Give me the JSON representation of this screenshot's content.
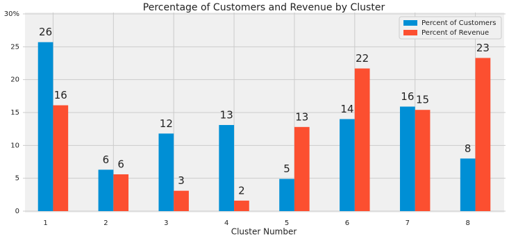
{
  "chart_data": {
    "type": "bar",
    "title": "Percentage of Customers and Revenue by Cluster",
    "x_label": "Cluster Number",
    "categories": [
      "1",
      "2",
      "3",
      "4",
      "5",
      "6",
      "7",
      "8"
    ],
    "series": [
      {
        "name": "Percent of Customers",
        "color": "#008fd5",
        "values": [
          25.7,
          6.3,
          11.8,
          13.1,
          4.9,
          14.0,
          15.9,
          8.0
        ],
        "value_labels": [
          "26",
          "6",
          "12",
          "13",
          "5",
          "14",
          "16",
          "8"
        ]
      },
      {
        "name": "Percent of Revenue",
        "color": "#fc4f30",
        "values": [
          16.1,
          5.6,
          3.1,
          1.6,
          12.8,
          21.7,
          15.4,
          23.3
        ],
        "value_labels": [
          "16",
          "6",
          "3",
          "2",
          "13",
          "22",
          "15",
          "23"
        ]
      }
    ],
    "ylim": [
      0,
      30
    ],
    "yticks": [
      0,
      5,
      10,
      15,
      20,
      25,
      {
        "value": 30,
        "label": "30%"
      }
    ],
    "grid": true,
    "legend": "upper right"
  }
}
